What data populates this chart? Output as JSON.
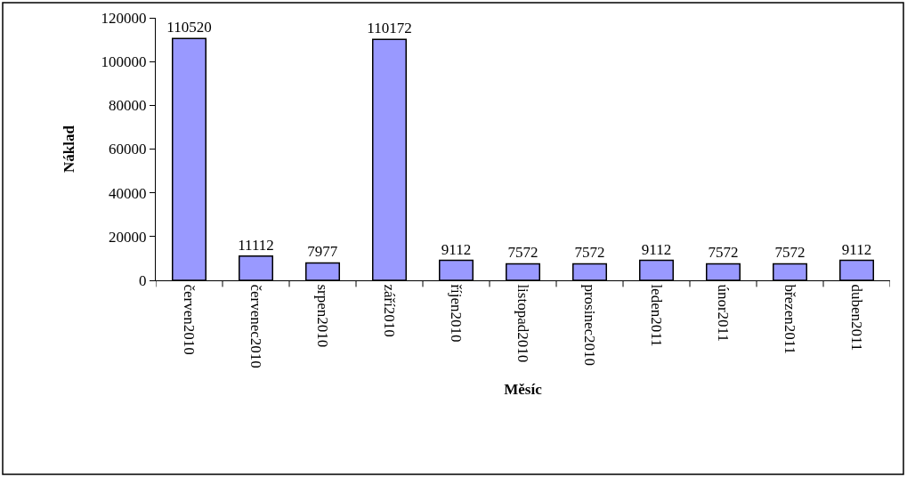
{
  "chart_data": {
    "type": "bar",
    "xlabel": "Měsíc",
    "ylabel": "Náklad",
    "categories": [
      "červen2010",
      "červenec2010",
      "srpen2010",
      "září2010",
      "říjen2010",
      "listopad2010",
      "prosinec2010",
      "leden2011",
      "únor2011",
      "březen2011",
      "duben2011"
    ],
    "values": [
      110520,
      11112,
      7977,
      110172,
      9112,
      7572,
      7572,
      9112,
      7572,
      7572,
      9112
    ],
    "color": "#9999ff",
    "ylim": [
      0,
      120000
    ],
    "yticks": [
      0,
      20000,
      40000,
      60000,
      80000,
      100000,
      120000
    ],
    "data_labels": true
  }
}
